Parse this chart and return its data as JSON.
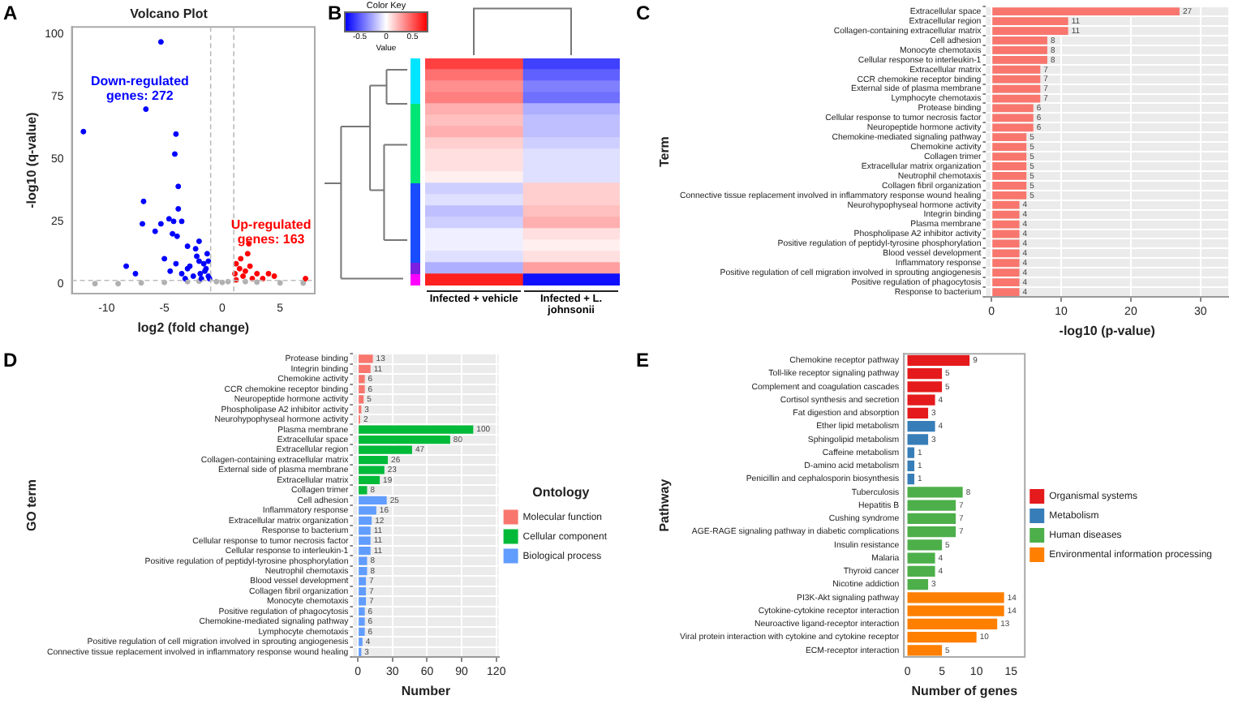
{
  "chart_data": [
    {
      "type": "scatter",
      "title": "Volcano Plot",
      "xlabel": "log2 (fold change)",
      "ylabel": "-log10 (q-value)",
      "annotations": [
        "A",
        "Down-regulated genes: 272",
        "Up-regulated genes: 163"
      ],
      "xlim": [
        -13,
        8
      ],
      "xticks": [
        -10,
        -5,
        0,
        5
      ],
      "ylim": [
        -4,
        103
      ],
      "yticks": [
        0,
        25,
        50,
        75,
        100
      ],
      "marker": "circle",
      "legend": false,
      "grid": false,
      "ref_lines": [
        {
          "axis": "x",
          "value": -1,
          "line_style": "dashed",
          "color": "#bbbbbb"
        },
        {
          "axis": "x",
          "value": 1,
          "line_style": "dashed",
          "color": "#bbbbbb"
        },
        {
          "axis": "y",
          "value": 1.3,
          "line_style": "dashed",
          "color": "#bbbbbb"
        }
      ],
      "series": [
        {
          "color": "#0000ff",
          "x": [
            -5.3,
            -6.6,
            -12,
            -4,
            -4.1,
            -3.8,
            -6.8,
            -3.8,
            -4.6,
            -6.9,
            -5.3,
            -4.2,
            -3.5,
            -5.8,
            -4.3,
            -3.9,
            -3,
            -2,
            -2.3,
            -8.3,
            -7.5,
            -5,
            -4,
            -3,
            -2,
            -1.5,
            -1.2,
            -2.5,
            -1.8,
            -1.3,
            -2.2,
            -1.6,
            -3.5,
            -4.5,
            -1.1,
            -1.4,
            -2.8,
            -1.9,
            -1.2,
            -3.2
          ],
          "values": [
            97,
            70,
            61,
            60,
            52,
            39,
            33,
            30,
            26,
            24,
            24,
            25,
            25,
            21,
            20,
            19,
            15,
            17,
            14,
            7,
            4,
            10,
            8,
            6,
            9,
            5,
            3,
            3,
            2,
            12,
            11,
            8,
            4,
            5,
            2,
            6,
            7,
            4,
            9,
            2
          ]
        },
        {
          "color": "#ff0000",
          "x": [
            2.3,
            2.2,
            1.2,
            1.5,
            2,
            1.8,
            3,
            4,
            4.5,
            7.2,
            2.6,
            1.1,
            3.5,
            1.6,
            2.4,
            1.2
          ],
          "values": [
            16,
            12,
            8,
            6,
            5,
            3,
            4,
            4,
            3,
            2,
            2,
            4,
            2,
            10,
            7,
            1.5
          ]
        },
        {
          "color": "#b0b0b0",
          "x": [
            -11,
            -9,
            -7,
            -5,
            -3,
            -2,
            -0.5,
            0,
            0.5,
            2,
            3,
            5,
            7
          ],
          "values": [
            0,
            0,
            0.3,
            0.5,
            0.8,
            1,
            0.8,
            0.5,
            0.8,
            0.8,
            0.6,
            0.3,
            0.2
          ]
        }
      ]
    },
    {
      "type": "heatmap",
      "title": "Color Key",
      "clabel": "Value",
      "annotations": [
        "B"
      ],
      "categories": [
        "Infected + vehicle",
        "Infected + L. johnsonii"
      ],
      "y_categories": [
        null,
        null,
        null,
        null,
        null,
        null,
        null,
        null,
        null,
        null,
        null,
        null,
        null,
        null,
        null,
        null,
        null,
        null,
        null,
        null
      ],
      "cells": [
        [
          0.6,
          -0.6
        ],
        [
          0.45,
          -0.5
        ],
        [
          0.35,
          -0.4
        ],
        [
          0.4,
          -0.45
        ],
        [
          0.25,
          -0.25
        ],
        [
          0.2,
          -0.2
        ],
        [
          0.25,
          -0.2
        ],
        [
          0.15,
          -0.15
        ],
        [
          0.1,
          -0.1
        ],
        [
          0.1,
          -0.1
        ],
        [
          0.05,
          -0.1
        ],
        [
          -0.15,
          0.15
        ],
        [
          -0.1,
          0.15
        ],
        [
          -0.2,
          0.2
        ],
        [
          -0.15,
          0.25
        ],
        [
          -0.05,
          0.1
        ],
        [
          -0.05,
          0.05
        ],
        [
          -0.1,
          0.1
        ],
        [
          -0.25,
          0.3
        ],
        [
          0.7,
          -0.75
        ]
      ],
      "clim": [
        -0.8,
        0.8
      ],
      "cticks": [
        -0.5,
        0,
        0.5
      ]
    },
    {
      "type": "bar",
      "orientation": "horizontal",
      "annotations": [
        "C"
      ],
      "xlabel": "-log10 (p-value)",
      "ylabel": "Term",
      "color": "#f8766d",
      "grid": true,
      "data_labels": true,
      "xlim": [
        -0.8,
        34
      ],
      "xticks": [
        0,
        10,
        20,
        30
      ],
      "categories": [
        "Extracellular space",
        "Extracellular region",
        "Collagen-containing extracellular matrix",
        "Cell adhesion",
        "Monocyte chemotaxis",
        "Cellular response to interleukin-1",
        "Extracellular matrix",
        "CCR chemokine receptor binding",
        "External side of plasma membrane",
        "Lymphocyte chemotaxis",
        "Protease binding",
        "Cellular response to tumor necrosis factor",
        "Neuropeptide hormone activity",
        "Chemokine-mediated signaling pathway",
        "Chemokine activity",
        "Collagen trimer",
        "Extracellular matrix organization",
        "Neutrophil chemotaxis",
        "Collagen fibril organization",
        "Connective tissue replacement involved in inflammatory response wound healing",
        "Neurohypophyseal hormone activity",
        "Integrin binding",
        "Plasma membrane",
        "Phospholipase A2 inhibitor activity",
        "Positive regulation of peptidyl-tyrosine phosphorylation",
        "Blood vessel development",
        "Inflammatory response",
        "Positive regulation of cell migration involved in sprouting angiogenesis",
        "Positive regulation of phagocytosis",
        "Response to bacterium"
      ],
      "values": [
        27,
        11,
        11,
        8,
        8,
        8,
        7,
        7,
        7,
        7,
        6,
        6,
        6,
        5,
        5,
        5,
        5,
        5,
        5,
        5,
        4,
        4,
        4,
        4,
        4,
        4,
        4,
        4,
        4,
        4
      ]
    },
    {
      "type": "bar",
      "orientation": "horizontal",
      "annotations": [
        "D"
      ],
      "xlabel": "Number",
      "ylabel": "GO term",
      "legend_title": "Ontology",
      "legend": "right",
      "grid": true,
      "data_labels": true,
      "xlim": [
        -4,
        122
      ],
      "xticks": [
        0,
        30,
        60,
        90,
        120
      ],
      "categories": [
        "Protease binding",
        "Integrin binding",
        "Chemokine activity",
        "CCR chemokine receptor binding",
        "Neuropeptide hormone activity",
        "Phospholipase A2 inhibitor activity",
        "Neurohypophyseal hormone activity",
        "Plasma membrane",
        "Extracellular space",
        "Extracellular region",
        "Collagen-containing extracellular matrix",
        "External side of plasma membrane",
        "Extracellular matrix",
        "Collagen trimer",
        "Cell adhesion",
        "Inflammatory response",
        "Extracellular matrix organization",
        "Response to bacterium",
        "Cellular response to tumor necrosis factor",
        "Cellular response to interleukin-1",
        "Positive regulation of peptidyl-tyrosine phosphorylation",
        "Neutrophil chemotaxis",
        "Blood vessel development",
        "Collagen fibril organization",
        "Monocyte chemotaxis",
        "Positive regulation of phagocytosis",
        "Chemokine-mediated signaling pathway",
        "Lymphocyte chemotaxis",
        "Positive regulation of cell migration involved in sprouting angiogenesis",
        "Connective tissue replacement involved in inflammatory response wound healing"
      ],
      "series": [
        {
          "name": "Molecular function",
          "color": "#f8766d",
          "values": [
            13,
            11,
            6,
            6,
            5,
            3,
            2,
            null,
            null,
            null,
            null,
            null,
            null,
            null,
            null,
            null,
            null,
            null,
            null,
            null,
            null,
            null,
            null,
            null,
            null,
            null,
            null,
            null,
            null,
            null
          ]
        },
        {
          "name": "Cellular component",
          "color": "#00ba38",
          "values": [
            null,
            null,
            null,
            null,
            null,
            null,
            null,
            100,
            80,
            47,
            26,
            23,
            19,
            8,
            null,
            null,
            null,
            null,
            null,
            null,
            null,
            null,
            null,
            null,
            null,
            null,
            null,
            null,
            null,
            null
          ]
        },
        {
          "name": "Biological process",
          "color": "#619cff",
          "values": [
            null,
            null,
            null,
            null,
            null,
            null,
            null,
            null,
            null,
            null,
            null,
            null,
            null,
            null,
            25,
            16,
            12,
            11,
            11,
            11,
            8,
            8,
            7,
            7,
            7,
            6,
            6,
            6,
            4,
            3
          ]
        }
      ]
    },
    {
      "type": "bar",
      "orientation": "horizontal",
      "annotations": [
        "E"
      ],
      "xlabel": "Number of genes",
      "ylabel": "Pathway",
      "legend": "right",
      "grid": false,
      "data_labels": true,
      "xlim": [
        -0.5,
        17
      ],
      "xticks": [
        0,
        5,
        10,
        15
      ],
      "categories": [
        "Chemokine receptor pathway",
        "Toll-like receptor signaling pathway",
        "Complement and coagulation cascades",
        "Cortisol synthesis and secretion",
        "Fat digestion and absorption",
        "Ether lipid metabolism",
        "Sphingolipid metabolism",
        "Caffeine metabolism",
        "D-amino acid metabolism",
        "Penicillin and cephalosporin biosynthesis",
        "Tuberculosis",
        "Hepatitis B",
        "Cushing syndrome",
        "AGE-RAGE signaling pathway in diabetic complications",
        "Insulin resistance",
        "Malaria",
        "Thyroid cancer",
        "Nicotine addiction",
        "PI3K-Akt signaling pathway",
        "Cytokine-cytokine receptor interaction",
        "Neuroactive ligand-receptor interaction",
        "Viral protein interaction with cytokine and cytokine receptor",
        "ECM-receptor interaction"
      ],
      "series": [
        {
          "name": "Organismal systems",
          "color": "#e41a1c",
          "values": [
            9,
            5,
            5,
            4,
            3,
            null,
            null,
            null,
            null,
            null,
            null,
            null,
            null,
            null,
            null,
            null,
            null,
            null,
            null,
            null,
            null,
            null,
            null
          ]
        },
        {
          "name": "Metabolism",
          "color": "#377eb8",
          "values": [
            null,
            null,
            null,
            null,
            null,
            4,
            3,
            1,
            1,
            1,
            null,
            null,
            null,
            null,
            null,
            null,
            null,
            null,
            null,
            null,
            null,
            null,
            null
          ]
        },
        {
          "name": "Human diseases",
          "color": "#4daf4a",
          "values": [
            null,
            null,
            null,
            null,
            null,
            null,
            null,
            null,
            null,
            null,
            8,
            7,
            7,
            7,
            5,
            4,
            4,
            3,
            null,
            null,
            null,
            null,
            null
          ]
        },
        {
          "name": "Environmental information processing",
          "color": "#ff7f00",
          "values": [
            null,
            null,
            null,
            null,
            null,
            null,
            null,
            null,
            null,
            null,
            null,
            null,
            null,
            null,
            null,
            null,
            null,
            null,
            14,
            14,
            13,
            10,
            5
          ]
        }
      ]
    }
  ]
}
